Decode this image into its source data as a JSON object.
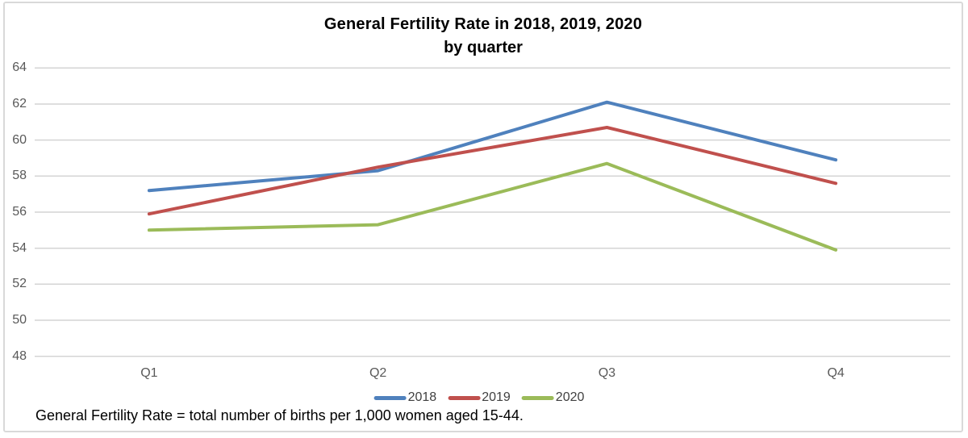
{
  "chart_data": {
    "type": "line",
    "title": "General Fertility Rate in 2018, 2019, 2020",
    "subtitle": "by quarter",
    "categories": [
      "Q1",
      "Q2",
      "Q3",
      "Q4"
    ],
    "series": [
      {
        "name": "2018",
        "color": "#4F81BD",
        "values": [
          57.2,
          58.3,
          62.1,
          58.9
        ]
      },
      {
        "name": "2019",
        "color": "#C0504D",
        "values": [
          55.9,
          58.5,
          60.7,
          57.6
        ]
      },
      {
        "name": "2020",
        "color": "#9BBB59",
        "values": [
          55.0,
          55.3,
          58.7,
          53.9
        ]
      }
    ],
    "ylim": [
      48,
      64
    ],
    "yticks": [
      64,
      62,
      60,
      58,
      56,
      54,
      52,
      50,
      48
    ],
    "grid": "horizontal",
    "legend_position": "bottom-center",
    "footnote": "General Fertility Rate = total number of births per 1,000 women aged 15-44."
  },
  "colors": {
    "gridline": "#d4d4d4",
    "axis_label": "#595959",
    "legend_label": "#404040",
    "frame_border": "#d9d9d9",
    "title": "#000000",
    "background": "#ffffff"
  }
}
